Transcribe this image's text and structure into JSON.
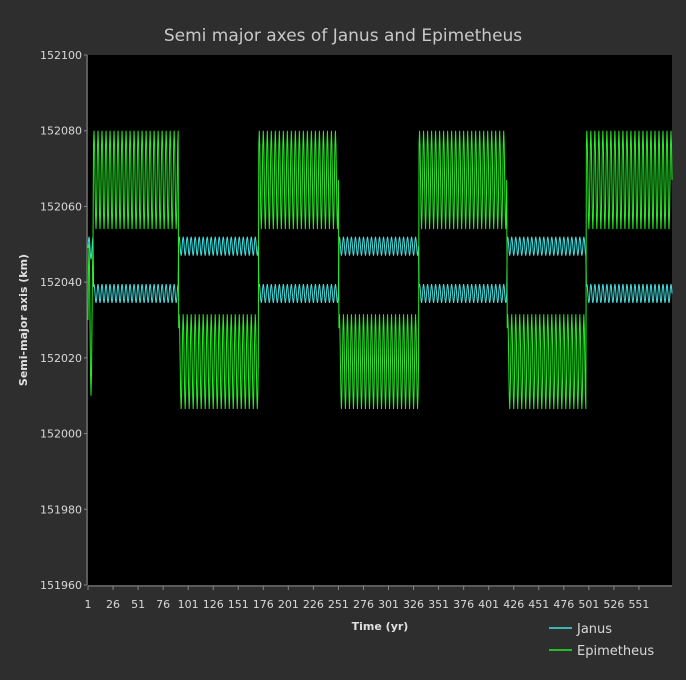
{
  "colors": {
    "background": "#2e2e2e",
    "plot_background": "#000000",
    "janus": "#40e0e0",
    "epimetheus": "#22ee22"
  },
  "chart_data": {
    "type": "line",
    "title": "Semi major axes of Janus and Epimetheus",
    "xlabel": "Time (yr)",
    "ylabel": "Semi-major axis (km)",
    "xlim": [
      1,
      584
    ],
    "ylim": [
      151960,
      152100
    ],
    "x_ticks": [
      "1",
      "26",
      "51",
      "76",
      "101",
      "126",
      "151",
      "176",
      "201",
      "226",
      "251",
      "276",
      "301",
      "326",
      "351",
      "376",
      "401",
      "426",
      "451",
      "476",
      "501",
      "526",
      "551"
    ],
    "y_ticks": [
      "151960",
      "151980",
      "152000",
      "152020",
      "152040",
      "152060",
      "152080",
      "152100"
    ],
    "legend_position": "bottom-right",
    "grid": false,
    "oscillation_period_yr": 4,
    "swap_years": [
      91,
      171,
      251,
      331,
      419,
      498
    ],
    "series": [
      {
        "name": "Janus",
        "color_key": "janus",
        "segments": [
          {
            "x_start": 1,
            "x_end": 6,
            "mean": 152049,
            "amplitude": 3
          },
          {
            "x_start": 6,
            "x_end": 91,
            "mean": 152037,
            "amplitude": 2.5
          },
          {
            "x_start": 91,
            "x_end": 171,
            "mean": 152049.5,
            "amplitude": 2.5
          },
          {
            "x_start": 171,
            "x_end": 251,
            "mean": 152037,
            "amplitude": 2.5
          },
          {
            "x_start": 251,
            "x_end": 331,
            "mean": 152049.5,
            "amplitude": 2.5
          },
          {
            "x_start": 331,
            "x_end": 419,
            "mean": 152037,
            "amplitude": 2.5
          },
          {
            "x_start": 419,
            "x_end": 498,
            "mean": 152049.5,
            "amplitude": 2.5
          },
          {
            "x_start": 498,
            "x_end": 584,
            "mean": 152037,
            "amplitude": 2.5
          }
        ]
      },
      {
        "name": "Epimetheus",
        "color_key": "epimetheus",
        "segments": [
          {
            "x_start": 1,
            "x_end": 6,
            "mean": 152030,
            "amplitude": 20
          },
          {
            "x_start": 6,
            "x_end": 91,
            "mean": 152067,
            "amplitude": 13
          },
          {
            "x_start": 91,
            "x_end": 171,
            "mean": 152019,
            "amplitude": 12.5
          },
          {
            "x_start": 171,
            "x_end": 251,
            "mean": 152067,
            "amplitude": 13
          },
          {
            "x_start": 251,
            "x_end": 331,
            "mean": 152019,
            "amplitude": 12.5
          },
          {
            "x_start": 331,
            "x_end": 419,
            "mean": 152067,
            "amplitude": 13
          },
          {
            "x_start": 419,
            "x_end": 498,
            "mean": 152019,
            "amplitude": 12.5
          },
          {
            "x_start": 498,
            "x_end": 584,
            "mean": 152067,
            "amplitude": 13
          }
        ]
      }
    ]
  }
}
